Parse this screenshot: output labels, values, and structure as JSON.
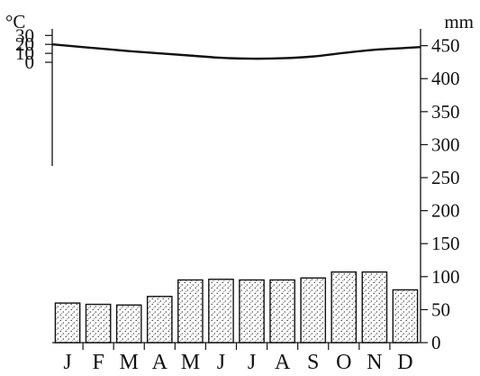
{
  "chart_data": {
    "type": "bar",
    "chart_kind": "climate graph",
    "categories": [
      "J",
      "F",
      "M",
      "A",
      "M",
      "J",
      "J",
      "A",
      "S",
      "O",
      "N",
      "D"
    ],
    "precipitation": {
      "unit": "mm",
      "values": [
        60,
        58,
        57,
        70,
        95,
        96,
        95,
        95,
        98,
        107,
        107,
        80
      ],
      "ylim": [
        0,
        470
      ],
      "ticks": [
        0,
        50,
        100,
        150,
        200,
        250,
        300,
        350,
        400,
        450
      ],
      "tick_labels": [
        "0",
        "50",
        "100",
        "150",
        "200",
        "250",
        "300",
        "350",
        "400",
        "450"
      ]
    },
    "temperature": {
      "unit": "°C",
      "values": [
        18.5,
        15.5,
        12.5,
        10,
        7.5,
        5,
        4,
        4.5,
        6.5,
        10.5,
        14,
        16
      ],
      "ylim": [
        -313.33,
        33.33
      ],
      "ticks": [
        0,
        10,
        20,
        30
      ],
      "tick_labels": [
        "0",
        "10",
        "20",
        "30"
      ]
    },
    "grid": false,
    "legend": "none",
    "colors": {
      "line": "#111111",
      "bar_fill": "#ffffff",
      "bar_dots": "#111111"
    }
  },
  "axis_labels": {
    "left_unit": "°C",
    "right_unit": "mm"
  }
}
